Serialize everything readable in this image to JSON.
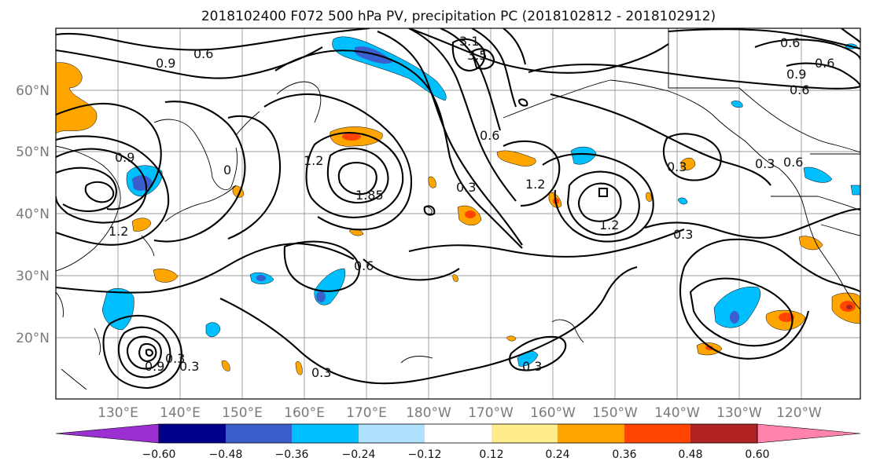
{
  "title": "2018102400 F072 500 hPa PV, precipitation PC (2018102812 - 2018102912)",
  "lat_labels": [
    "60°N",
    "50°N",
    "40°N",
    "30°N",
    "20°N"
  ],
  "lon_labels": [
    "130°E",
    "140°E",
    "150°E",
    "160°E",
    "170°E",
    "180°W",
    "170°W",
    "160°W",
    "150°W",
    "140°W",
    "130°W",
    "120°W"
  ],
  "colorbar": {
    "colors": [
      "#9b30d0",
      "#00008b",
      "#3a5fcd",
      "#00bfff",
      "#b0e2ff",
      "#ffffff",
      "#ffec8b",
      "#ffa500",
      "#ff4500",
      "#b22222",
      "#ff82ab"
    ],
    "tick_labels": [
      "−0.60",
      "−0.48",
      "−0.36",
      "−0.24",
      "−0.12",
      "0.12",
      "0.24",
      "0.36",
      "0.48",
      "0.60"
    ]
  },
  "contour_labels": [
    "0.6",
    "0.9",
    "0.9",
    "1.2",
    "0",
    "1.2",
    "1.85",
    "0.3",
    "0.6",
    "0.6",
    "0.3",
    "1.2",
    "1.2",
    "0.3",
    "0.3",
    "0.6",
    "0.9",
    "0.6",
    "0.3",
    "0.3",
    "0.6",
    "0.3",
    "0.3",
    "0.9",
    "0.6",
    "3.1",
    "3.5"
  ]
}
